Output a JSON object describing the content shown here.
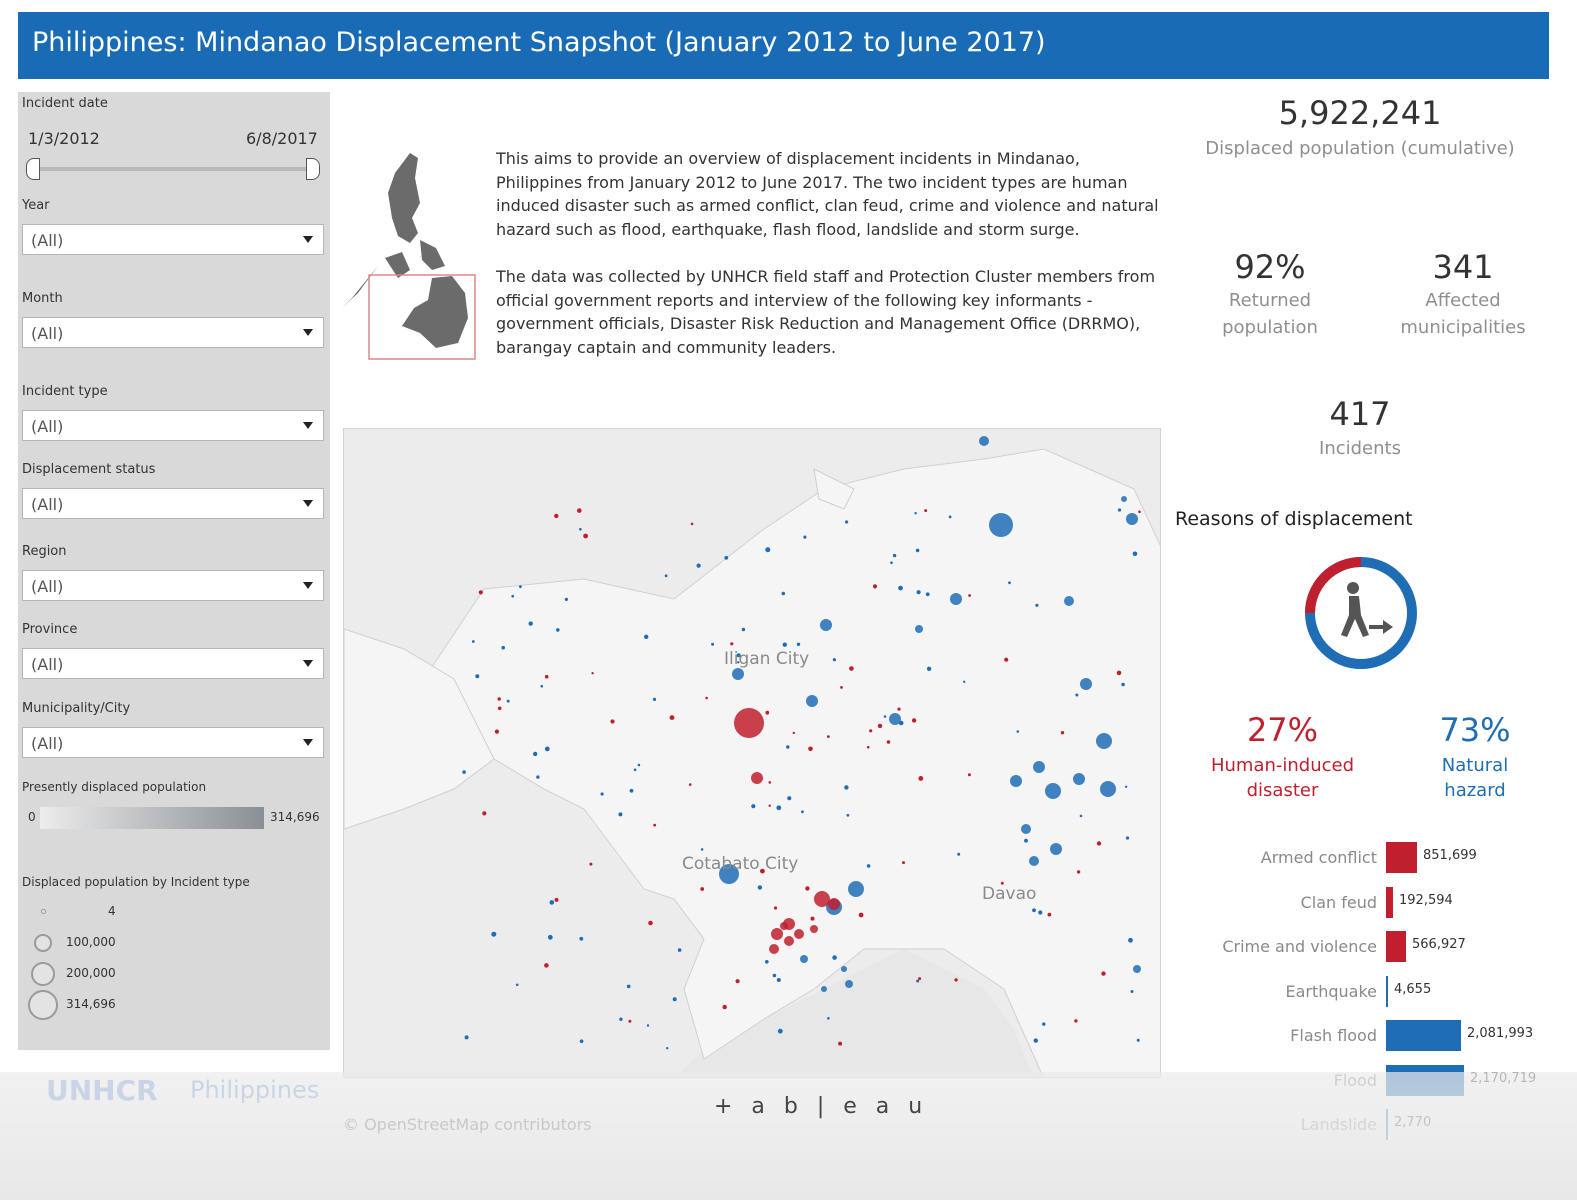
{
  "header": {
    "title": "Philippines: Mindanao Displacement Snapshot (January 2012 to June 2017)"
  },
  "filters": {
    "incident_date": {
      "label": "Incident date",
      "start": "1/3/2012",
      "end": "6/8/2017"
    },
    "year": {
      "label": "Year",
      "value": "(All)"
    },
    "month": {
      "label": "Month",
      "value": "(All)"
    },
    "incident_type": {
      "label": "Incident type",
      "value": "(All)"
    },
    "displacement_status": {
      "label": "Displacement status",
      "value": "(All)"
    },
    "region": {
      "label": "Region",
      "value": "(All)"
    },
    "province": {
      "label": "Province",
      "value": "(All)"
    },
    "municipality": {
      "label": "Municipality/City",
      "value": "(All)"
    },
    "present_legend": {
      "label": "Presently displaced population",
      "min": "0",
      "max": "314,696"
    },
    "size_legend": {
      "label": "Displaced population by Incident type",
      "items": [
        "4",
        "100,000",
        "200,000",
        "314,696"
      ]
    }
  },
  "description": {
    "paragraph1": "This aims to provide an overview of displacement incidents in Mindanao, Philippines from January 2012 to June 2017. The two incident types are human induced disaster such as armed conflict, clan feud, crime and violence and natural hazard such as flood, earthquake, flash flood, landslide and storm surge.",
    "paragraph2": "The data was collected by UNHCR field staff and Protection Cluster members  from official government reports and interview of the following key informants - government officials, Disaster Risk Reduction and Management Office (DRRMO), barangay captain and community leaders."
  },
  "kpis": {
    "displaced": {
      "value": "5,922,241",
      "label": "Displaced population (cumulative)"
    },
    "returned": {
      "value": "92%",
      "label_line1": "Returned",
      "label_line2": "population"
    },
    "municipalities": {
      "value": "341",
      "label_line1": "Affected",
      "label_line2": "municipalities"
    },
    "incidents": {
      "value": "417",
      "label": "Incidents"
    }
  },
  "map": {
    "cities": [
      "Iligan City",
      "Cotabato City",
      "Davao"
    ]
  },
  "reasons": {
    "title": "Reasons of displacement",
    "human": {
      "pct": "27%",
      "line1": "Human-induced",
      "line2": "disaster",
      "color": "#c0202e"
    },
    "natural": {
      "pct": "73%",
      "line1": "Natural",
      "line2": "hazard",
      "color": "#1f6db5"
    }
  },
  "chart_data": {
    "type": "bar",
    "orientation": "horizontal",
    "categories": [
      "Armed conflict",
      "Clan feud",
      "Crime and violence",
      "Earthquake",
      "Flash flood",
      "Flood",
      "Landslide"
    ],
    "values": [
      851699,
      192594,
      566927,
      4655,
      2081993,
      2170719,
      2770
    ],
    "value_labels": [
      "851,699",
      "192,594",
      "566,927",
      "4,655",
      "2,081,993",
      "2,170,719",
      "2,770"
    ],
    "colors": [
      "#c0202e",
      "#c0202e",
      "#c0202e",
      "#1f6db5",
      "#1f6db5",
      "#1f6db5",
      "#1f6db5"
    ]
  },
  "footer": {
    "unhcr": "UNHCR",
    "unhcr_country": "Philippines",
    "osm": "© OpenStreetMap contributors",
    "tableau": "+ a b | e a u"
  }
}
